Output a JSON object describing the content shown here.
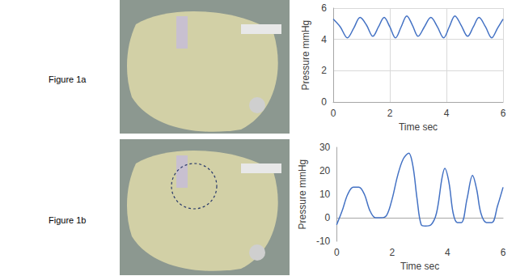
{
  "figure_labels": [
    "Figure 1a",
    "Figure 1b"
  ],
  "chart_data": [
    {
      "type": "line",
      "x_label": "Time sec",
      "y_label": "Pressure mmHg",
      "x": [
        0,
        0.25,
        0.5,
        0.72,
        0.95,
        1.18,
        1.4,
        1.6,
        1.8,
        2.0,
        2.2,
        2.4,
        2.6,
        2.8,
        3.0,
        3.22,
        3.45,
        3.68,
        3.9,
        4.1,
        4.3,
        4.52,
        4.75,
        4.95,
        5.15,
        5.38,
        5.6,
        5.8,
        6.0
      ],
      "values": [
        5.3,
        4.8,
        4.1,
        4.7,
        5.4,
        4.9,
        4.2,
        4.8,
        5.4,
        4.8,
        4.1,
        4.8,
        5.5,
        4.9,
        4.2,
        4.8,
        5.4,
        4.8,
        4.1,
        4.8,
        5.5,
        4.9,
        4.2,
        4.8,
        5.4,
        4.8,
        4.1,
        4.7,
        5.3
      ],
      "color": "#4472c4",
      "xlim": [
        0,
        6
      ],
      "xticks": [
        0,
        2,
        4,
        6
      ],
      "ylim": [
        0,
        6
      ],
      "yticks": [
        0,
        2,
        4,
        6
      ],
      "grid": true
    },
    {
      "type": "line",
      "x_label": "Time sec",
      "y_label": "Pressure mmHg",
      "x": [
        0,
        0.2,
        0.4,
        0.6,
        0.8,
        1.0,
        1.2,
        1.4,
        1.6,
        1.8,
        2.0,
        2.2,
        2.4,
        2.6,
        2.75,
        2.9,
        3.05,
        3.2,
        3.4,
        3.6,
        3.8,
        3.9,
        4.05,
        4.2,
        4.35,
        4.5,
        4.7,
        4.9,
        5.05,
        5.2,
        5.4,
        5.6,
        5.8,
        6.0
      ],
      "values": [
        -3,
        3,
        10,
        13,
        13,
        10,
        3,
        0,
        0,
        1,
        8,
        18,
        25,
        27.5,
        22,
        8,
        -3,
        -3.5,
        -3,
        2,
        17,
        21,
        15,
        2,
        -2,
        -2,
        8,
        18,
        12,
        2,
        -2,
        -2,
        5,
        13
      ],
      "color": "#4472c4",
      "xlim": [
        0,
        6
      ],
      "xticks": [
        0,
        2,
        4,
        6
      ],
      "ylim": [
        -10,
        30
      ],
      "yticks": [
        -10,
        0,
        10,
        20,
        30
      ],
      "grid": false
    }
  ]
}
